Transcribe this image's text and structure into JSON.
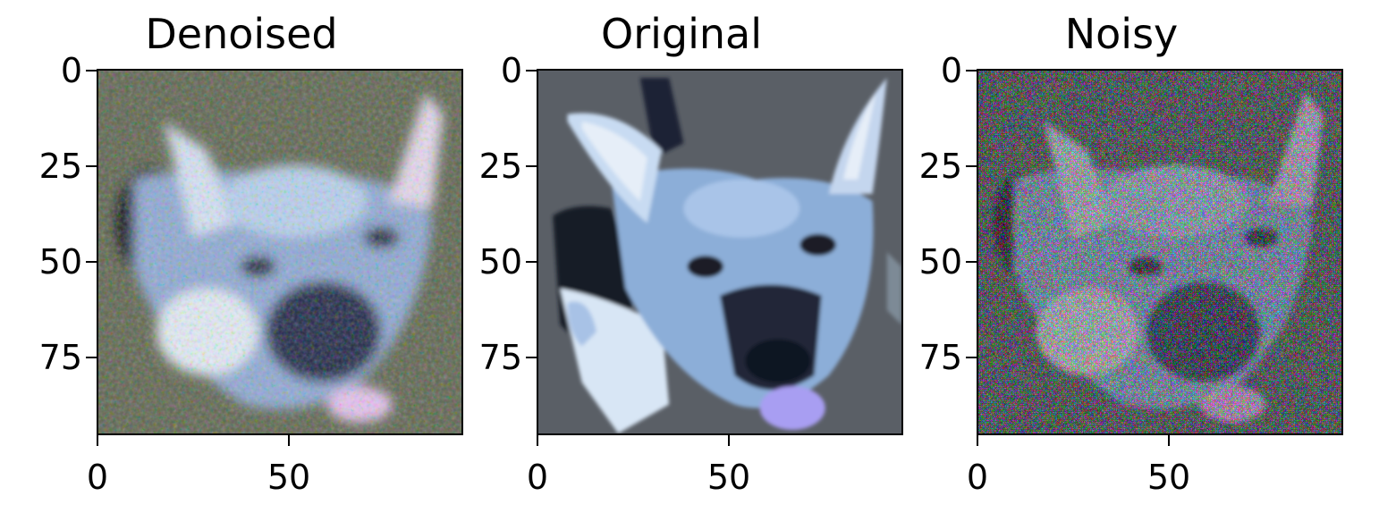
{
  "panels": [
    {
      "title": "Denoised",
      "y_ticks": [
        "0",
        "25",
        "50",
        "75"
      ],
      "x_ticks": [
        "0",
        "50"
      ]
    },
    {
      "title": "Original",
      "y_ticks": [
        "0",
        "25",
        "50",
        "75"
      ],
      "x_ticks": [
        "0",
        "50"
      ]
    },
    {
      "title": "Noisy",
      "y_ticks": [
        "0",
        "25",
        "50",
        "75"
      ],
      "x_ticks": [
        "0",
        "50"
      ]
    }
  ],
  "colors": {
    "dog_blue": "#7fa8e0",
    "dog_light": "#d8e6f6",
    "dog_dark": "#18203a",
    "tongue": "#b9a9f0",
    "original_bg": "#5b6068",
    "denoised_bg": "#5a6a4e",
    "noisy_bg": "#4d5a5a"
  }
}
